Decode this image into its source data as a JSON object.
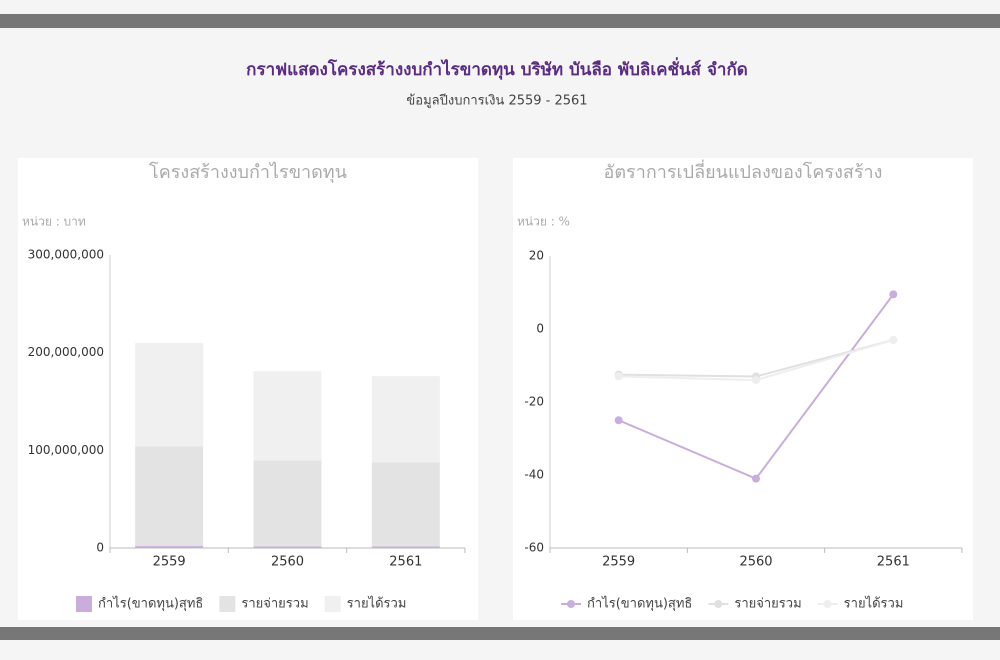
{
  "header": {
    "title": "กราฟแสดงโครงสร้างงบกำไรขาดทุน บริษัท บันลือ พับลิเคชั่นส์ จำกัด",
    "subtitle": "ข้อมูลปีงบการเงิน 2559 - 2561"
  },
  "chart_data": [
    {
      "type": "bar",
      "stacked": true,
      "title": "โครงสร้างงบกำไรขาดทุน",
      "unit_label": "หน่วย : บาท",
      "categories": [
        "2559",
        "2560",
        "2561"
      ],
      "series": [
        {
          "name": "กำไร(ขาดทุน)สุทธิ",
          "color": "#c9aedd",
          "values": [
            2000000,
            1500000,
            1500000
          ]
        },
        {
          "name": "รายจ่ายรวม",
          "color": "#e3e3e3",
          "values": [
            102000000,
            88000000,
            86000000
          ]
        },
        {
          "name": "รายได้รวม",
          "color": "#f0f0f0",
          "values": [
            106000000,
            91500000,
            88500000
          ]
        }
      ],
      "ylim": [
        0,
        300000000
      ],
      "yticks": [
        0,
        {
          "value": 100000000,
          "label": "100,000,000"
        },
        {
          "value": 200000000,
          "label": "200,000,000"
        },
        {
          "value": 300000000,
          "label": "300,000,000"
        }
      ],
      "grid": false,
      "legend": "bottom"
    },
    {
      "type": "line",
      "title": "อัตราการเปลี่ยนแปลงของโครงสร้าง",
      "unit_label": "หน่วย : %",
      "categories": [
        "2559",
        "2560",
        "2561"
      ],
      "series": [
        {
          "name": "กำไร(ขาดทุน)สุทธิ",
          "color": "#c9aedd",
          "values": [
            -25,
            -41,
            9.5
          ]
        },
        {
          "name": "รายจ่ายรวม",
          "color": "#e0e0e0",
          "values": [
            -12.5,
            -13,
            -3
          ]
        },
        {
          "name": "รายได้รวม",
          "color": "#eeeeee",
          "values": [
            -13,
            -14,
            -3
          ]
        }
      ],
      "ylim": [
        -60,
        20
      ],
      "yticks": [
        -60,
        -40,
        -20,
        0,
        20
      ],
      "grid": false,
      "legend": "bottom"
    }
  ]
}
